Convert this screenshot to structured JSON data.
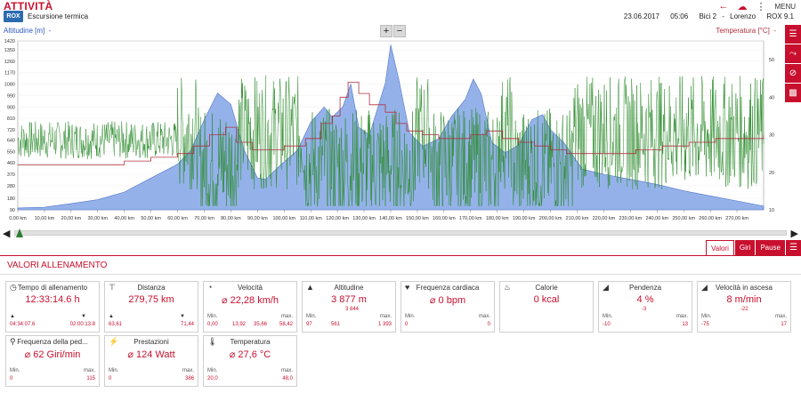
{
  "header": {
    "app_title": "ATTIVITÀ",
    "logo_text": "ROX",
    "activity_name": "Escursione termica",
    "menu_label": "MENU",
    "date": "23.06.2017",
    "time": "05:06",
    "bike": "Bici 2",
    "rider": "Lorenzo",
    "device": "ROX 9.1"
  },
  "chart_head": {
    "altitude_label": "Altitudine [m]",
    "temperature_label": "Temperatura [°C]",
    "zoom_in": "+",
    "zoom_out": "−"
  },
  "colors": {
    "accent": "#c8102e",
    "altitude_fill": "#8faee8",
    "speed_line": "#2a8a2a",
    "temperature_line": "#b03040"
  },
  "chart_data": {
    "type": "line",
    "y_left": {
      "label": "Altitudine [m]",
      "ticks": [
        90,
        180,
        280,
        370,
        460,
        550,
        640,
        720,
        810,
        900,
        990,
        1080,
        1170,
        1260,
        1350,
        1420
      ]
    },
    "y_right": {
      "label": "Temperatura [°C]",
      "ticks": [
        10,
        20,
        30,
        40,
        50
      ]
    },
    "x_ticks": [
      "0,00 km",
      "10,00 km",
      "20,00 km",
      "30,00 km",
      "40,00 km",
      "50,00 km",
      "60,00 km",
      "70,00 km",
      "80,00 km",
      "90,00 km",
      "100,00 km",
      "110,00 km",
      "120,00 km",
      "130,00 km",
      "140,00 km",
      "150,00 km",
      "160,00 km",
      "170,00 km",
      "180,00 km",
      "190,00 km",
      "200,00 km",
      "210,00 km",
      "220,00 km",
      "230,00 km",
      "240,00 km",
      "250,00 km",
      "260,00 km",
      "270,00 km"
    ],
    "x_range": [
      0,
      280
    ],
    "altitude_range": [
      90,
      1420
    ],
    "temperature_range": [
      10,
      55
    ],
    "altitude": [
      [
        0,
        105
      ],
      [
        10,
        110
      ],
      [
        20,
        140
      ],
      [
        30,
        170
      ],
      [
        40,
        230
      ],
      [
        50,
        340
      ],
      [
        60,
        450
      ],
      [
        65,
        560
      ],
      [
        70,
        800
      ],
      [
        75,
        1010
      ],
      [
        80,
        920
      ],
      [
        85,
        560
      ],
      [
        90,
        340
      ],
      [
        93,
        330
      ],
      [
        98,
        430
      ],
      [
        105,
        560
      ],
      [
        110,
        780
      ],
      [
        115,
        900
      ],
      [
        118,
        820
      ],
      [
        122,
        900
      ],
      [
        125,
        1080
      ],
      [
        128,
        740
      ],
      [
        132,
        680
      ],
      [
        138,
        1090
      ],
      [
        140,
        1390
      ],
      [
        143,
        1120
      ],
      [
        147,
        700
      ],
      [
        152,
        590
      ],
      [
        158,
        650
      ],
      [
        163,
        830
      ],
      [
        168,
        960
      ],
      [
        171,
        1120
      ],
      [
        174,
        1000
      ],
      [
        178,
        620
      ],
      [
        183,
        540
      ],
      [
        188,
        600
      ],
      [
        193,
        800
      ],
      [
        197,
        840
      ],
      [
        200,
        720
      ],
      [
        205,
        620
      ],
      [
        212,
        410
      ],
      [
        220,
        370
      ],
      [
        230,
        330
      ],
      [
        240,
        290
      ],
      [
        250,
        240
      ],
      [
        260,
        200
      ],
      [
        270,
        160
      ],
      [
        280,
        120
      ]
    ],
    "temperature": [
      [
        0,
        22
      ],
      [
        10,
        22
      ],
      [
        20,
        22
      ],
      [
        30,
        22
      ],
      [
        40,
        23
      ],
      [
        50,
        24
      ],
      [
        60,
        25
      ],
      [
        66,
        27
      ],
      [
        72,
        30
      ],
      [
        78,
        32
      ],
      [
        82,
        28
      ],
      [
        88,
        26
      ],
      [
        93,
        26
      ],
      [
        100,
        27
      ],
      [
        108,
        29
      ],
      [
        114,
        33
      ],
      [
        118,
        35
      ],
      [
        121,
        40
      ],
      [
        124,
        44
      ],
      [
        128,
        41
      ],
      [
        132,
        38
      ],
      [
        138,
        36
      ],
      [
        142,
        33
      ],
      [
        146,
        31
      ],
      [
        152,
        30
      ],
      [
        158,
        29
      ],
      [
        164,
        29
      ],
      [
        170,
        30
      ],
      [
        176,
        31
      ],
      [
        182,
        29
      ],
      [
        188,
        28
      ],
      [
        194,
        27
      ],
      [
        200,
        26
      ],
      [
        206,
        25
      ],
      [
        214,
        25
      ],
      [
        222,
        25
      ],
      [
        232,
        26
      ],
      [
        242,
        27
      ],
      [
        252,
        28
      ],
      [
        262,
        29
      ],
      [
        272,
        29
      ],
      [
        280,
        30
      ]
    ],
    "speed_series_name": "",
    "grid": true,
    "legend": "none"
  },
  "scrollbar": {
    "left": "◀",
    "right": "▶"
  },
  "tabs": [
    {
      "label": "Valori",
      "active": true
    },
    {
      "label": "Giri",
      "active": false
    },
    {
      "label": "Pause",
      "active": false
    }
  ],
  "section_title": "VALORI ALLENAMENTO",
  "cards": [
    {
      "id": "tempo",
      "icon": "clock-icon",
      "glyph": "◷",
      "title": "Tempo di allenamento",
      "value": "12:33:14.6 h",
      "sub_left": "04:34:07.6",
      "sub_right": "02:00:13.8",
      "sub_left_icon": "▲",
      "sub_right_icon": "▼"
    },
    {
      "id": "distanza",
      "icon": "signpost-icon",
      "glyph": "⊤",
      "title": "Distanza",
      "value": "279,75 km",
      "sub_left": "63,61",
      "sub_right": "71,44",
      "sub_left_icon": "▲",
      "sub_right_icon": "▼"
    },
    {
      "id": "velocita",
      "icon": "speedometer-icon",
      "glyph": "◔",
      "title": "Velocità",
      "value": "⌀ 22,28 km/h",
      "min_label": "Min.",
      "max_label": "max.",
      "min": "0,00",
      "max": "58,42",
      "mid1": "13,92",
      "mid2": "35,66"
    },
    {
      "id": "altitudine",
      "icon": "mountain-icon",
      "glyph": "▲",
      "title": "Altitudine",
      "value": "3 877 m",
      "value_sub": "3 844",
      "min_label": "Min.",
      "max_label": "max.",
      "min": "97",
      "max": "1 393",
      "mid1": "561"
    },
    {
      "id": "frequenza",
      "icon": "heart-icon",
      "glyph": "♥",
      "title": "Frequenza cardiaca",
      "value": "⌀ 0 bpm",
      "min_label": "Min.",
      "max_label": "max.",
      "min": "0",
      "max": "0"
    },
    {
      "id": "calorie",
      "icon": "flame-icon",
      "glyph": "♨",
      "title": "Calorie",
      "value": "0 kcal"
    },
    {
      "id": "pendenza",
      "icon": "slope-icon",
      "glyph": "◢",
      "title": "Pendenza",
      "value": "4 %",
      "value_sub": "-3",
      "min_label": "Min.",
      "max_label": "max.",
      "min": "-10",
      "max": "13"
    },
    {
      "id": "ascesa",
      "icon": "ascent-icon",
      "glyph": "◢",
      "title": "Velocità in ascesa",
      "value": "8 m/min",
      "value_sub": "-22",
      "min_label": "Min.",
      "max_label": "max.",
      "min": "-75",
      "max": "17"
    },
    {
      "id": "pedalata",
      "icon": "pedal-icon",
      "glyph": "⚲",
      "title": "Frequenza della ped...",
      "value": "⌀ 62 Giri/min",
      "min_label": "Min.",
      "max_label": "max.",
      "min": "0",
      "max": "115"
    },
    {
      "id": "prestazioni",
      "icon": "power-icon",
      "glyph": "⚡",
      "title": "Prestazioni",
      "value": "⌀ 124 Watt",
      "min_label": "Min.",
      "max_label": "max.",
      "min": "0",
      "max": "386"
    },
    {
      "id": "temperatura",
      "icon": "thermometer-icon",
      "glyph": "🌡",
      "title": "Temperatura",
      "value": "⌀ 27,6 °C",
      "min_label": "Min.",
      "max_label": "max.",
      "min": "20,0",
      "max": "48,0"
    }
  ]
}
